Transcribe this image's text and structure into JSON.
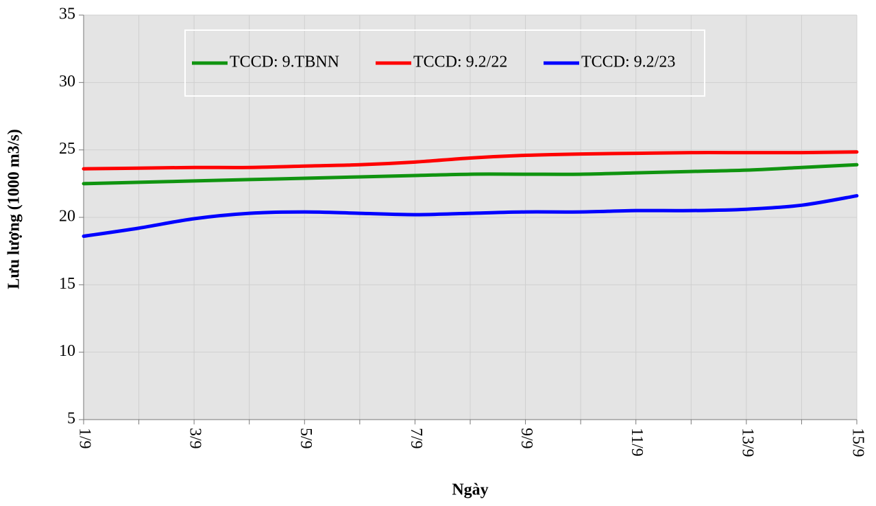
{
  "chart_data": {
    "type": "line",
    "x_label": "Ngày",
    "y_label": "Lưu lượng (1000 m3/s)",
    "categories": [
      "1/9",
      null,
      "3/9",
      null,
      "5/9",
      null,
      "7/9",
      null,
      "9/9",
      null,
      "11/9",
      null,
      "13/9",
      null,
      "15/9"
    ],
    "series": [
      {
        "name": "TCCD: 9.TBNN",
        "color": "#109410",
        "values": [
          22.5,
          22.6,
          22.7,
          22.8,
          22.9,
          23.0,
          23.1,
          23.2,
          23.2,
          23.2,
          23.3,
          23.4,
          23.5,
          23.7,
          23.9
        ]
      },
      {
        "name": "TCCD: 9.2/22",
        "color": "#ff0000",
        "values": [
          23.6,
          23.65,
          23.7,
          23.7,
          23.8,
          23.9,
          24.1,
          24.4,
          24.6,
          24.7,
          24.75,
          24.8,
          24.8,
          24.8,
          24.85
        ]
      },
      {
        "name": "TCCD: 9.2/23",
        "color": "#0000ff",
        "values": [
          18.6,
          19.2,
          19.9,
          20.3,
          20.4,
          20.3,
          20.2,
          20.3,
          20.4,
          20.4,
          20.5,
          20.5,
          20.6,
          20.9,
          21.6
        ]
      }
    ],
    "ylim": [
      5,
      35
    ],
    "yticks": [
      5,
      10,
      15,
      20,
      25,
      30,
      35
    ],
    "grid": true,
    "legend": "top"
  }
}
